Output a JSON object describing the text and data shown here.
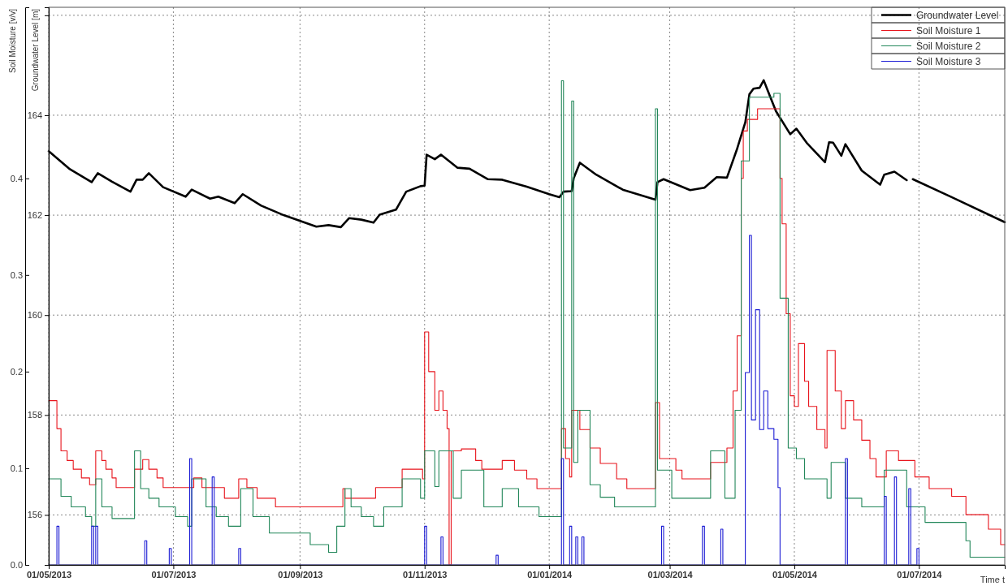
{
  "chart_data": {
    "type": "line",
    "xlabel": "Time t",
    "ylabel": "Groundwater Level [m]",
    "y2label": "Soil Moisture [v/v]",
    "xlim": [
      "2013-05-01",
      "2014-08-12"
    ],
    "xticks": [
      {
        "value": "2013-05-01",
        "label": "01/05/2013"
      },
      {
        "value": "2013-07-01",
        "label": "01/07/2013"
      },
      {
        "value": "2013-09-01",
        "label": "01/09/2013"
      },
      {
        "value": "2013-11-01",
        "label": "01/11/2013"
      },
      {
        "value": "2014-01-01",
        "label": "01/01/2014"
      },
      {
        "value": "2014-03-01",
        "label": "01/03/2014"
      },
      {
        "value": "2014-05-01",
        "label": "01/05/2014"
      },
      {
        "value": "2014-07-01",
        "label": "01/07/2014"
      }
    ],
    "ylim": [
      155.0,
      166.16
    ],
    "yticks": [
      156,
      158,
      160,
      162,
      164,
      {
        "value": 166,
        "label": null
      }
    ],
    "y2lim": [
      0,
      0.577
    ],
    "y2ticks": [
      {
        "value": 0,
        "label": "0.0"
      },
      0.1,
      0.2,
      0.3,
      0.4
    ],
    "grid": true,
    "legend": "top right",
    "marker": "none",
    "line_style": "solid",
    "series": [
      {
        "name": "Groundwater Level",
        "type": "line",
        "color": "#000000",
        "x": [
          "2013-05-01",
          "2013-05-11",
          "2013-05-22",
          "2013-05-25",
          "2013-06-01",
          "2013-06-10",
          "2013-06-13",
          "2013-06-16",
          "2013-06-19",
          "2013-06-26",
          "2013-07-07",
          "2013-07-10",
          "2013-07-19",
          "2013-07-23",
          "2013-07-31",
          "2013-08-04",
          "2013-08-13",
          "2013-08-24",
          "2013-09-09",
          "2013-09-15",
          "2013-09-21",
          "2013-09-25",
          "2013-10-01",
          "2013-10-07",
          "2013-10-10",
          "2013-10-18",
          "2013-10-23",
          "2013-10-30",
          "2013-11-01",
          "2013-11-02",
          "2013-11-06",
          "2013-11-09",
          "2013-11-17",
          "2013-11-23",
          "2013-12-02",
          "2013-12-09",
          "2013-12-21",
          "2014-01-01",
          "2014-01-06",
          "2014-01-08",
          "2014-01-12",
          "2014-01-13",
          "2014-01-16",
          "2014-01-24",
          "2014-02-06",
          "2014-02-22",
          "2014-02-23",
          "2014-02-26",
          "2014-03-11",
          "2014-03-18",
          "2014-03-24",
          "2014-03-29",
          "2014-04-03",
          "2014-04-07",
          "2014-04-09",
          "2014-04-11",
          "2014-04-14",
          "2014-04-16",
          "2014-04-18",
          "2014-04-22",
          "2014-04-29",
          "2014-05-02",
          "2014-05-07",
          "2014-05-16",
          "2014-05-18",
          "2014-05-20",
          "2014-05-24",
          "2014-05-26",
          "2014-06-03",
          "2014-06-12",
          "2014-06-14",
          "2014-06-19",
          "2014-06-25",
          "2014-06-26",
          "2014-06-28",
          "2014-07-17",
          "2014-08-12"
        ],
        "values": [
          163.28,
          162.93,
          162.66,
          162.84,
          162.67,
          162.47,
          162.71,
          162.71,
          162.84,
          162.56,
          162.37,
          162.51,
          162.33,
          162.37,
          162.24,
          162.42,
          162.19,
          162.0,
          161.77,
          161.8,
          161.76,
          161.94,
          161.91,
          161.85,
          162.01,
          162.11,
          162.47,
          162.58,
          162.59,
          163.21,
          163.12,
          163.21,
          162.95,
          162.93,
          162.72,
          162.71,
          162.57,
          162.42,
          162.36,
          162.47,
          162.48,
          162.74,
          163.05,
          162.81,
          162.51,
          162.31,
          162.66,
          162.72,
          162.5,
          162.55,
          162.76,
          162.75,
          163.33,
          163.86,
          164.42,
          164.53,
          164.55,
          164.7,
          164.49,
          164.08,
          163.62,
          163.73,
          163.45,
          163.06,
          163.46,
          163.45,
          163.19,
          163.42,
          162.89,
          162.61,
          162.81,
          162.87,
          162.7,
          null,
          162.72,
          162.36,
          161.86
        ]
      },
      {
        "name": "Soil Moisture 1",
        "type": "step",
        "axis": "y2",
        "color": "#e8141c",
        "x": [
          "2013-05-01",
          "2013-05-05",
          "2013-05-07",
          "2013-05-10",
          "2013-05-13",
          "2013-05-17",
          "2013-05-21",
          "2013-05-24",
          "2013-05-27",
          "2013-05-29",
          "2013-06-01",
          "2013-06-03",
          "2013-06-12",
          "2013-06-16",
          "2013-06-19",
          "2013-06-23",
          "2013-06-26",
          "2013-07-11",
          "2013-07-15",
          "2013-07-26",
          "2013-08-02",
          "2013-08-06",
          "2013-08-11",
          "2013-08-20",
          "2013-09-22",
          "2013-09-23",
          "2013-10-08",
          "2013-10-21",
          "2013-10-31",
          "2013-11-01",
          "2013-11-03",
          "2013-11-06",
          "2013-11-08",
          "2013-11-10",
          "2013-11-12",
          "2013-11-13",
          "2013-11-14",
          "2013-11-19",
          "2013-11-26",
          "2013-11-29",
          "2013-12-09",
          "2013-12-15",
          "2013-12-21",
          "2013-12-26",
          "2014-01-07",
          "2014-01-09",
          "2014-01-11",
          "2014-01-12",
          "2014-01-16",
          "2014-01-21",
          "2014-01-26",
          "2014-02-03",
          "2014-02-08",
          "2014-02-22",
          "2014-02-24",
          "2014-03-04",
          "2014-03-07",
          "2014-03-21",
          "2014-03-29",
          "2014-04-01",
          "2014-04-03",
          "2014-04-05",
          "2014-04-06",
          "2014-04-08",
          "2014-04-13",
          "2014-04-24",
          "2014-04-25",
          "2014-04-27",
          "2014-04-29",
          "2014-05-01",
          "2014-05-03",
          "2014-05-06",
          "2014-05-08",
          "2014-05-12",
          "2014-05-16",
          "2014-05-17",
          "2014-05-21",
          "2014-05-24",
          "2014-05-26",
          "2014-05-30",
          "2014-06-03",
          "2014-06-07",
          "2014-06-10",
          "2014-06-15",
          "2014-06-21",
          "2014-06-29",
          "2014-07-06",
          "2014-07-17",
          "2014-07-24",
          "2014-08-04",
          "2014-08-10",
          "2014-08-12"
        ],
        "values": [
          0.17,
          0.141,
          0.118,
          0.108,
          0.099,
          0.09,
          0.083,
          0.118,
          0.108,
          0.099,
          0.09,
          0.08,
          0.099,
          0.109,
          0.099,
          0.09,
          0.08,
          0.09,
          0.08,
          0.069,
          0.089,
          0.08,
          0.069,
          0.06,
          0.079,
          0.069,
          0.08,
          0.099,
          0.089,
          0.241,
          0.2,
          0.16,
          0.18,
          0.16,
          0.141,
          0.0,
          0.118,
          0.12,
          0.108,
          0.099,
          0.108,
          0.098,
          0.089,
          0.079,
          0.141,
          0.11,
          0.091,
          0.16,
          0.14,
          0.121,
          0.105,
          0.089,
          0.079,
          0.168,
          0.11,
          0.098,
          0.089,
          0.106,
          0.121,
          0.18,
          0.237,
          0.4,
          0.449,
          0.461,
          0.472,
          0.4,
          0.353,
          0.26,
          0.175,
          0.164,
          0.229,
          0.19,
          0.164,
          0.14,
          0.121,
          0.222,
          0.18,
          0.141,
          0.17,
          0.15,
          0.129,
          0.11,
          0.091,
          0.118,
          0.108,
          0.091,
          0.079,
          0.071,
          0.052,
          0.037,
          0.021,
          0.021
        ]
      },
      {
        "name": "Soil Moisture 2",
        "type": "step",
        "axis": "y2",
        "color": "#23875a",
        "x": [
          "2013-05-01",
          "2013-05-07",
          "2013-05-12",
          "2013-05-19",
          "2013-05-22",
          "2013-05-24",
          "2013-05-27",
          "2013-06-01",
          "2013-06-12",
          "2013-06-15",
          "2013-06-19",
          "2013-06-24",
          "2013-07-02",
          "2013-07-08",
          "2013-07-10",
          "2013-07-17",
          "2013-07-22",
          "2013-07-28",
          "2013-08-03",
          "2013-08-09",
          "2013-08-17",
          "2013-09-06",
          "2013-09-15",
          "2013-09-19",
          "2013-09-23",
          "2013-09-26",
          "2013-10-01",
          "2013-10-07",
          "2013-10-12",
          "2013-10-21",
          "2013-10-30",
          "2013-11-01",
          "2013-11-06",
          "2013-11-08",
          "2013-11-15",
          "2013-11-19",
          "2013-11-30",
          "2013-12-09",
          "2013-12-17",
          "2013-12-27",
          "2014-01-07",
          "2014-01-08",
          "2014-01-12",
          "2014-01-13",
          "2014-01-15",
          "2014-01-21",
          "2014-01-26",
          "2014-02-02",
          "2014-02-22",
          "2014-02-23",
          "2014-03-02",
          "2014-03-21",
          "2014-03-28",
          "2014-04-02",
          "2014-04-05",
          "2014-04-09",
          "2014-04-21",
          "2014-04-24",
          "2014-04-28",
          "2014-05-02",
          "2014-05-06",
          "2014-05-17",
          "2014-05-19",
          "2014-05-26",
          "2014-06-03",
          "2014-06-14",
          "2014-06-25",
          "2014-07-04",
          "2014-07-24",
          "2014-07-26",
          "2014-08-12"
        ],
        "values": [
          0.089,
          0.071,
          0.06,
          0.05,
          0.04,
          0.089,
          0.06,
          0.048,
          0.118,
          0.079,
          0.069,
          0.06,
          0.05,
          0.04,
          0.089,
          0.06,
          0.05,
          0.04,
          0.079,
          0.05,
          0.033,
          0.021,
          0.013,
          0.04,
          0.079,
          0.06,
          0.05,
          0.04,
          0.06,
          0.089,
          0.069,
          0.118,
          0.081,
          0.118,
          0.069,
          0.098,
          0.06,
          0.079,
          0.06,
          0.05,
          0.501,
          0.121,
          0.48,
          0.106,
          0.16,
          0.083,
          0.07,
          0.06,
          0.472,
          0.098,
          0.069,
          0.118,
          0.069,
          0.16,
          0.418,
          0.484,
          0.488,
          0.276,
          0.121,
          0.11,
          0.089,
          0.069,
          0.106,
          0.069,
          0.06,
          0.098,
          0.06,
          0.044,
          0.025,
          0.008,
          0.008
        ]
      },
      {
        "name": "Soil Moisture 3",
        "type": "step",
        "axis": "y2",
        "color": "#1c1cd4",
        "x": [
          "2013-05-01",
          "2013-05-05",
          "2013-05-06",
          "2013-05-22",
          "2013-05-23",
          "2013-05-24",
          "2013-05-25",
          "2013-06-17",
          "2013-06-18",
          "2013-06-29",
          "2013-06-30",
          "2013-07-09",
          "2013-07-10",
          "2013-07-20",
          "2013-07-21",
          "2013-08-02",
          "2013-08-03",
          "2013-11-01",
          "2013-11-02",
          "2013-11-09",
          "2013-11-10",
          "2013-12-06",
          "2013-12-07",
          "2014-01-07",
          "2014-01-08",
          "2014-01-11",
          "2014-01-12",
          "2014-01-14",
          "2014-01-15",
          "2014-01-17",
          "2014-01-18",
          "2014-02-25",
          "2014-02-26",
          "2014-03-17",
          "2014-03-18",
          "2014-03-26",
          "2014-03-27",
          "2014-04-07",
          "2014-04-09",
          "2014-04-10",
          "2014-04-12",
          "2014-04-14",
          "2014-04-16",
          "2014-04-18",
          "2014-04-21",
          "2014-04-23",
          "2014-04-24",
          "2014-05-26",
          "2014-05-27",
          "2014-06-14",
          "2014-06-15",
          "2014-06-19",
          "2014-06-20",
          "2014-06-26",
          "2014-06-27",
          "2014-06-30",
          "2014-07-01"
        ],
        "values": [
          0,
          0.04,
          0,
          0.04,
          0,
          0.04,
          0,
          0.025,
          0,
          0.017,
          0,
          0.11,
          0,
          0.091,
          0,
          0.017,
          0,
          0.04,
          0,
          0.029,
          0,
          0.01,
          0,
          0.11,
          0,
          0.04,
          0,
          0.029,
          0,
          0.029,
          0,
          0.04,
          0,
          0.04,
          0,
          0.037,
          0,
          0.199,
          0.341,
          0.15,
          0.264,
          0.14,
          0.18,
          0.141,
          0.13,
          0.08,
          0,
          0.11,
          0,
          0.071,
          0,
          0.091,
          0,
          0.079,
          0,
          0.017,
          0
        ]
      }
    ]
  }
}
